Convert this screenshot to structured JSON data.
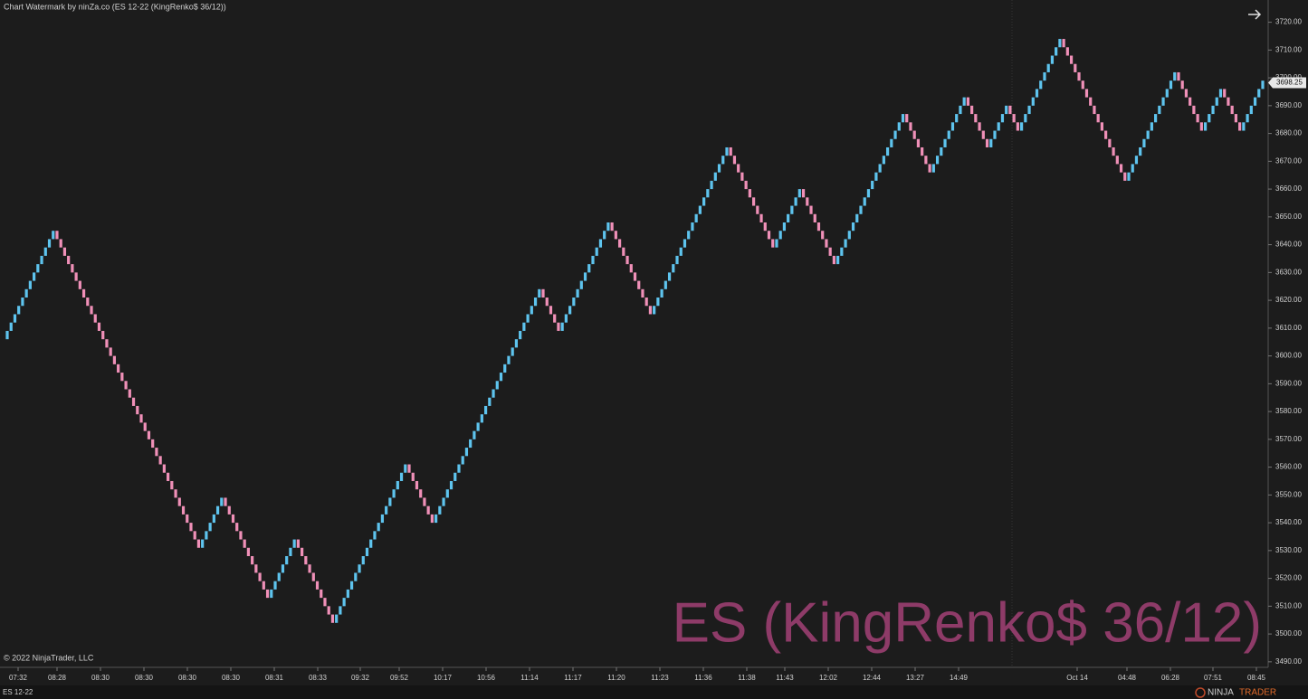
{
  "chart_data": {
    "type": "renko",
    "title": "Chart Watermark by ninZa.co (ES 12-22 (KingRenko$ 36/12))",
    "watermark": "ES (KingRenko$ 36/12)",
    "copyright": "© 2022 NinjaTrader, LLC",
    "instrument_tab": "ES 12-22",
    "logo": [
      "NINJA",
      "TRADER"
    ],
    "up_color": "#5ec4ee",
    "down_color": "#f090b8",
    "grid": false,
    "last_price": 3698.25,
    "ylim": [
      3488,
      3728
    ],
    "yticks": [
      {
        "value": 3490,
        "label": "3490.00"
      },
      {
        "value": 3500,
        "label": "3500.00"
      },
      {
        "value": 3510,
        "label": "3510.00"
      },
      {
        "value": 3520,
        "label": "3520.00"
      },
      {
        "value": 3530,
        "label": "3530.00"
      },
      {
        "value": 3540,
        "label": "3540.00"
      },
      {
        "value": 3550,
        "label": "3550.00"
      },
      {
        "value": 3560,
        "label": "3560.00"
      },
      {
        "value": 3570,
        "label": "3570.00"
      },
      {
        "value": 3580,
        "label": "3580.00"
      },
      {
        "value": 3590,
        "label": "3590.00"
      },
      {
        "value": 3600,
        "label": "3600.00"
      },
      {
        "value": 3610,
        "label": "3610.00"
      },
      {
        "value": 3620,
        "label": "3620.00"
      },
      {
        "value": 3630,
        "label": "3630.00"
      },
      {
        "value": 3640,
        "label": "3640.00"
      },
      {
        "value": 3650,
        "label": "3650.00"
      },
      {
        "value": 3660,
        "label": "3660.00"
      },
      {
        "value": 3670,
        "label": "3670.00"
      },
      {
        "value": 3680,
        "label": "3680.00"
      },
      {
        "value": 3690,
        "label": "3690.00"
      },
      {
        "value": 3700,
        "label": "3700.00"
      },
      {
        "value": 3710,
        "label": "3710.00"
      },
      {
        "value": 3720,
        "label": "3720.00"
      }
    ],
    "x_labels": [
      "07:32",
      "08:28",
      "08:30",
      "08:30",
      "08:30",
      "08:30",
      "08:31",
      "08:33",
      "09:32",
      "09:52",
      "10:17",
      "10:56",
      "11:14",
      "11:17",
      "11:20",
      "11:23",
      "11:36",
      "11:38",
      "11:43",
      "12:02",
      "12:44",
      "13:27",
      "14:49",
      "Oct 14",
      "04:48",
      "06:28",
      "07:51",
      "08:45"
    ],
    "closes": [
      3606,
      3609,
      3612,
      3615,
      3618,
      3621,
      3624,
      3627,
      3630,
      3633,
      3636,
      3639,
      3642,
      3645,
      3642,
      3639,
      3636,
      3633,
      3630,
      3627,
      3624,
      3621,
      3618,
      3615,
      3612,
      3609,
      3606,
      3603,
      3600,
      3597,
      3594,
      3591,
      3588,
      3585,
      3582,
      3579,
      3576,
      3573,
      3570,
      3567,
      3564,
      3561,
      3558,
      3555,
      3552,
      3549,
      3546,
      3543,
      3540,
      3537,
      3534,
      3531,
      3534,
      3537,
      3540,
      3543,
      3546,
      3549,
      3546,
      3543,
      3540,
      3537,
      3534,
      3531,
      3528,
      3525,
      3522,
      3519,
      3516,
      3513,
      3516,
      3519,
      3522,
      3525,
      3528,
      3531,
      3534,
      3531,
      3528,
      3525,
      3522,
      3519,
      3516,
      3513,
      3510,
      3507,
      3504,
      3507,
      3510,
      3513,
      3516,
      3519,
      3522,
      3525,
      3528,
      3531,
      3534,
      3537,
      3540,
      3543,
      3546,
      3549,
      3552,
      3555,
      3558,
      3561,
      3558,
      3555,
      3552,
      3549,
      3546,
      3543,
      3540,
      3543,
      3546,
      3549,
      3552,
      3555,
      3558,
      3561,
      3564,
      3567,
      3570,
      3573,
      3576,
      3579,
      3582,
      3585,
      3588,
      3591,
      3594,
      3597,
      3600,
      3603,
      3606,
      3609,
      3612,
      3615,
      3618,
      3621,
      3624,
      3621,
      3618,
      3615,
      3612,
      3609,
      3612,
      3615,
      3618,
      3621,
      3624,
      3627,
      3630,
      3633,
      3636,
      3639,
      3642,
      3645,
      3648,
      3645,
      3642,
      3639,
      3636,
      3633,
      3630,
      3627,
      3624,
      3621,
      3618,
      3615,
      3618,
      3621,
      3624,
      3627,
      3630,
      3633,
      3636,
      3639,
      3642,
      3645,
      3648,
      3651,
      3654,
      3657,
      3660,
      3663,
      3666,
      3669,
      3672,
      3675,
      3672,
      3669,
      3666,
      3663,
      3660,
      3657,
      3654,
      3651,
      3648,
      3645,
      3642,
      3639,
      3642,
      3645,
      3648,
      3651,
      3654,
      3657,
      3660,
      3657,
      3654,
      3651,
      3648,
      3645,
      3642,
      3639,
      3636,
      3633,
      3636,
      3639,
      3642,
      3645,
      3648,
      3651,
      3654,
      3657,
      3660,
      3663,
      3666,
      3669,
      3672,
      3675,
      3678,
      3681,
      3684,
      3687,
      3684,
      3681,
      3678,
      3675,
      3672,
      3669,
      3666,
      3669,
      3672,
      3675,
      3678,
      3681,
      3684,
      3687,
      3690,
      3693,
      3690,
      3687,
      3684,
      3681,
      3678,
      3675,
      3678,
      3681,
      3684,
      3687,
      3690,
      3687,
      3684,
      3681,
      3684,
      3687,
      3690,
      3693,
      3696,
      3699,
      3702,
      3705,
      3708,
      3711,
      3714,
      3711,
      3708,
      3705,
      3702,
      3699,
      3696,
      3693,
      3690,
      3687,
      3684,
      3681,
      3678,
      3675,
      3672,
      3669,
      3666,
      3663,
      3666,
      3669,
      3672,
      3675,
      3678,
      3681,
      3684,
      3687,
      3690,
      3693,
      3696,
      3699,
      3702,
      3699,
      3696,
      3693,
      3690,
      3687,
      3684,
      3681,
      3684,
      3687,
      3690,
      3693,
      3696,
      3693,
      3690,
      3687,
      3684,
      3681,
      3684,
      3687,
      3690,
      3693,
      3696,
      3699
    ]
  }
}
